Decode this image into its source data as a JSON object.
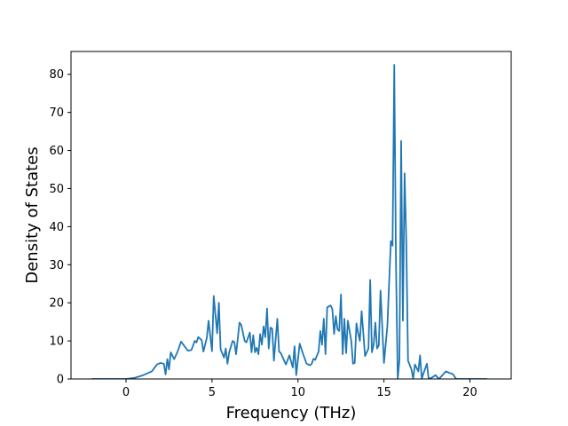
{
  "chart_data": {
    "type": "line",
    "title": "",
    "xlabel": "Frequency (THz)",
    "ylabel": "Density of States",
    "xlim": [
      -3.2,
      22.4
    ],
    "ylim": [
      0,
      86
    ],
    "xticks": [
      0,
      5,
      10,
      15,
      20
    ],
    "yticks": [
      0,
      10,
      20,
      30,
      40,
      50,
      60,
      70,
      80
    ],
    "grid": false,
    "legend": "none",
    "series": [
      {
        "color": "#1f77b4",
        "points": [
          [
            -2.0,
            0.0
          ],
          [
            0.0,
            0.0
          ],
          [
            0.5,
            0.3
          ],
          [
            1.0,
            1.0
          ],
          [
            1.5,
            2.0
          ],
          [
            1.8,
            3.8
          ],
          [
            2.0,
            4.2
          ],
          [
            2.2,
            4.0
          ],
          [
            2.3,
            1.2
          ],
          [
            2.4,
            5.2
          ],
          [
            2.5,
            2.5
          ],
          [
            2.6,
            7.0
          ],
          [
            2.8,
            5.2
          ],
          [
            3.0,
            7.2
          ],
          [
            3.2,
            9.8
          ],
          [
            3.4,
            8.6
          ],
          [
            3.6,
            7.4
          ],
          [
            3.8,
            7.6
          ],
          [
            4.0,
            10.0
          ],
          [
            4.1,
            9.6
          ],
          [
            4.2,
            11.0
          ],
          [
            4.4,
            10.2
          ],
          [
            4.5,
            7.2
          ],
          [
            4.7,
            10.8
          ],
          [
            4.8,
            15.3
          ],
          [
            5.0,
            7.3
          ],
          [
            5.1,
            21.8
          ],
          [
            5.3,
            12.0
          ],
          [
            5.4,
            20.0
          ],
          [
            5.5,
            7.8
          ],
          [
            5.7,
            5.6
          ],
          [
            5.8,
            8.0
          ],
          [
            5.9,
            4.0
          ],
          [
            6.0,
            7.0
          ],
          [
            6.2,
            10.0
          ],
          [
            6.3,
            9.7
          ],
          [
            6.4,
            6.5
          ],
          [
            6.6,
            14.8
          ],
          [
            6.7,
            14.2
          ],
          [
            6.9,
            10.0
          ],
          [
            7.0,
            9.6
          ],
          [
            7.2,
            12.2
          ],
          [
            7.3,
            7.0
          ],
          [
            7.4,
            11.5
          ],
          [
            7.5,
            7.0
          ],
          [
            7.6,
            8.2
          ],
          [
            7.7,
            6.5
          ],
          [
            7.8,
            11.8
          ],
          [
            7.9,
            9.0
          ],
          [
            8.0,
            13.8
          ],
          [
            8.1,
            11.0
          ],
          [
            8.2,
            18.5
          ],
          [
            8.3,
            8.0
          ],
          [
            8.4,
            13.5
          ],
          [
            8.5,
            13.2
          ],
          [
            8.6,
            4.8
          ],
          [
            8.8,
            15.8
          ],
          [
            8.9,
            7.2
          ],
          [
            9.0,
            6.8
          ],
          [
            9.1,
            5.8
          ],
          [
            9.3,
            3.8
          ],
          [
            9.5,
            6.2
          ],
          [
            9.7,
            3.0
          ],
          [
            9.8,
            8.6
          ],
          [
            9.9,
            1.0
          ],
          [
            10.1,
            9.3
          ],
          [
            10.3,
            6.5
          ],
          [
            10.5,
            4.0
          ],
          [
            10.7,
            3.6
          ],
          [
            10.8,
            4.0
          ],
          [
            10.9,
            5.3
          ],
          [
            11.0,
            5.0
          ],
          [
            11.2,
            7.2
          ],
          [
            11.3,
            12.6
          ],
          [
            11.4,
            9.0
          ],
          [
            11.5,
            15.8
          ],
          [
            11.6,
            6.5
          ],
          [
            11.7,
            18.8
          ],
          [
            11.9,
            19.3
          ],
          [
            12.0,
            18.3
          ],
          [
            12.1,
            11.8
          ],
          [
            12.2,
            16.5
          ],
          [
            12.3,
            13.0
          ],
          [
            12.4,
            12.6
          ],
          [
            12.5,
            22.2
          ],
          [
            12.6,
            6.5
          ],
          [
            12.7,
            15.8
          ],
          [
            12.8,
            6.8
          ],
          [
            12.9,
            15.3
          ],
          [
            13.1,
            10.0
          ],
          [
            13.2,
            4.0
          ],
          [
            13.3,
            4.2
          ],
          [
            13.4,
            14.6
          ],
          [
            13.5,
            12.0
          ],
          [
            13.6,
            10.0
          ],
          [
            13.7,
            17.8
          ],
          [
            13.8,
            12.0
          ],
          [
            13.9,
            6.0
          ],
          [
            14.1,
            8.0
          ],
          [
            14.2,
            26.0
          ],
          [
            14.3,
            7.0
          ],
          [
            14.4,
            9.0
          ],
          [
            14.5,
            14.8
          ],
          [
            14.6,
            8.0
          ],
          [
            14.7,
            8.8
          ],
          [
            14.8,
            23.2
          ],
          [
            15.0,
            4.2
          ],
          [
            15.1,
            9.0
          ],
          [
            15.2,
            14.0
          ],
          [
            15.3,
            25.2
          ],
          [
            15.4,
            36.2
          ],
          [
            15.5,
            35.0
          ],
          [
            15.6,
            82.5
          ],
          [
            15.7,
            30.0
          ],
          [
            15.8,
            0.0
          ],
          [
            15.9,
            5.0
          ],
          [
            16.0,
            62.5
          ],
          [
            16.1,
            15.3
          ],
          [
            16.2,
            54.0
          ],
          [
            16.3,
            36.0
          ],
          [
            16.4,
            4.8
          ],
          [
            16.6,
            2.5
          ],
          [
            16.7,
            0.0
          ],
          [
            16.8,
            3.8
          ],
          [
            17.0,
            2.0
          ],
          [
            17.1,
            6.2
          ],
          [
            17.2,
            0.0
          ],
          [
            17.3,
            1.5
          ],
          [
            17.5,
            4.0
          ],
          [
            17.6,
            0.0
          ],
          [
            17.8,
            0.4
          ],
          [
            18.0,
            1.0
          ],
          [
            18.2,
            0.0
          ],
          [
            18.4,
            1.0
          ],
          [
            18.6,
            2.0
          ],
          [
            18.8,
            1.6
          ],
          [
            19.0,
            1.3
          ],
          [
            19.2,
            0.0
          ],
          [
            20.0,
            0.0
          ],
          [
            21.0,
            0.0
          ]
        ]
      }
    ]
  }
}
